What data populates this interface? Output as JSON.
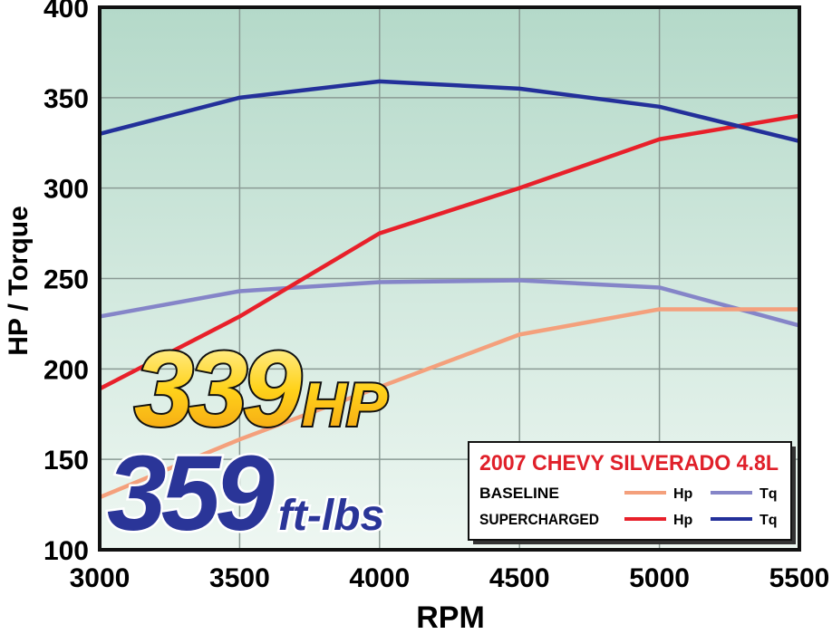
{
  "chart_data": {
    "type": "line",
    "x_label": "RPM",
    "y_label": "HP / Torque",
    "x": [
      3000,
      3500,
      4000,
      4500,
      5000,
      5500
    ],
    "xlim": [
      3000,
      5500
    ],
    "xticks": [
      3000,
      3500,
      4000,
      4500,
      5000,
      5500
    ],
    "ylim": [
      100,
      400
    ],
    "yticks": [
      100,
      150,
      200,
      250,
      300,
      350,
      400
    ],
    "grid": true,
    "series": [
      {
        "name": "Tq",
        "group": "BASELINE",
        "color": "#8585c8",
        "values": [
          229,
          243,
          248,
          249,
          245,
          224
        ]
      },
      {
        "name": "Hp",
        "group": "BASELINE",
        "color": "#f4a07c",
        "values": [
          129,
          161,
          190,
          219,
          233,
          233
        ]
      },
      {
        "name": "Hp",
        "group": "SUPERCHARGED",
        "color": "#e8202a",
        "values": [
          189,
          229,
          275,
          300,
          327,
          340
        ]
      },
      {
        "name": "Tq",
        "group": "SUPERCHARGED",
        "color": "#23309a",
        "values": [
          330,
          350,
          359,
          355,
          345,
          326
        ]
      }
    ],
    "legend": {
      "title": "2007 CHEVY SILVERADO 4.8L",
      "position": "lower right"
    },
    "annotations": [
      {
        "value": "339",
        "unit": "HP"
      },
      {
        "value": "359",
        "unit": "ft-lbs"
      }
    ]
  }
}
